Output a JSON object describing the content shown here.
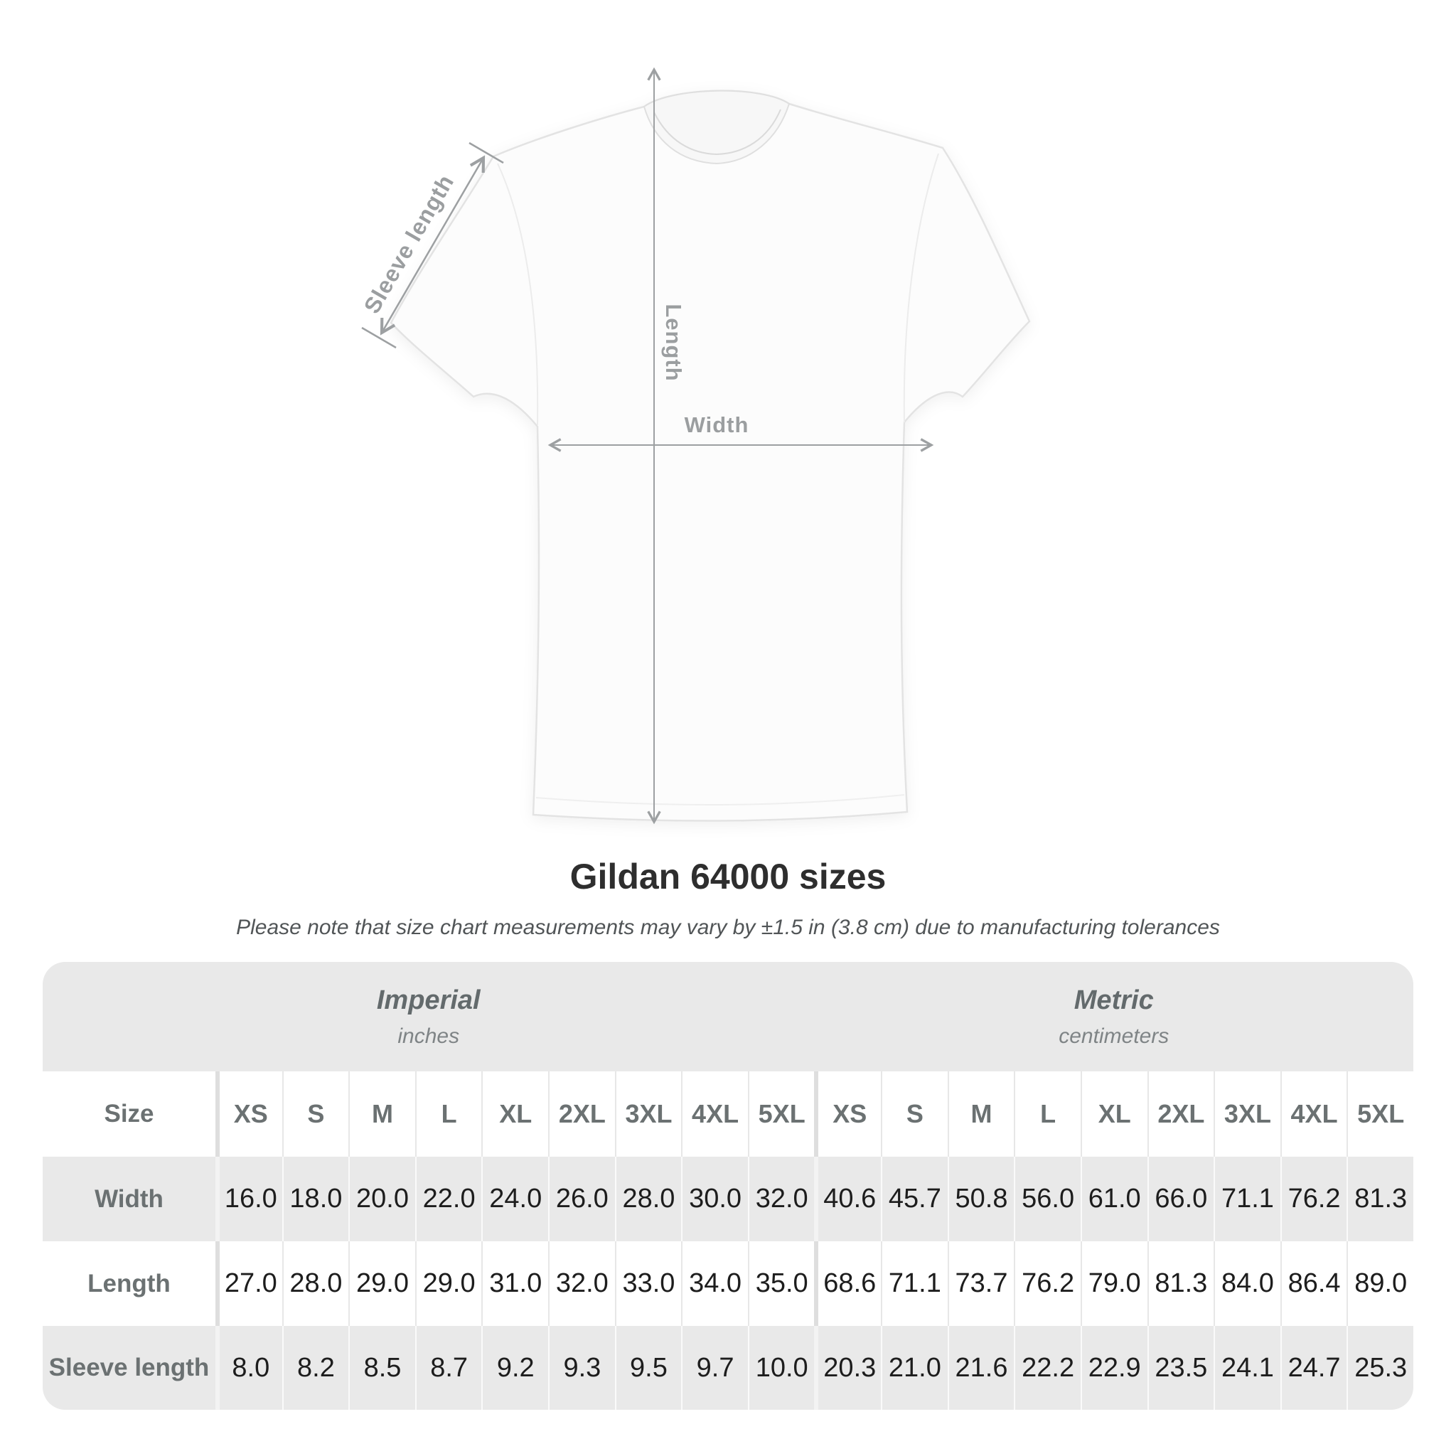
{
  "diagram": {
    "sleeve_label": "Sleeve length",
    "length_label": "Length",
    "width_label": "Width"
  },
  "heading": {
    "title": "Gildan 64000 sizes",
    "subtitle": "Please note that size chart measurements may vary by ±1.5 in (3.8 cm) due to manufacturing tolerances"
  },
  "table": {
    "unit_groups": [
      {
        "name": "Imperial",
        "unit": "inches"
      },
      {
        "name": "Metric",
        "unit": "centimeters"
      }
    ],
    "size_row": {
      "label": "Size",
      "sizes": [
        "XS",
        "S",
        "M",
        "L",
        "XL",
        "2XL",
        "3XL",
        "4XL",
        "5XL",
        "XS",
        "S",
        "M",
        "L",
        "XL",
        "2XL",
        "3XL",
        "4XL",
        "5XL"
      ]
    },
    "measurement_rows": [
      {
        "label": "Width",
        "values": [
          "16.0",
          "18.0",
          "20.0",
          "22.0",
          "24.0",
          "26.0",
          "28.0",
          "30.0",
          "32.0",
          "40.6",
          "45.7",
          "50.8",
          "56.0",
          "61.0",
          "66.0",
          "71.1",
          "76.2",
          "81.3"
        ]
      },
      {
        "label": "Length",
        "values": [
          "27.0",
          "28.0",
          "29.0",
          "29.0",
          "31.0",
          "32.0",
          "33.0",
          "34.0",
          "35.0",
          "68.6",
          "71.1",
          "73.7",
          "76.2",
          "79.0",
          "81.3",
          "84.0",
          "86.4",
          "89.0"
        ]
      },
      {
        "label": "Sleeve length",
        "values": [
          "8.0",
          "8.2",
          "8.5",
          "8.7",
          "9.2",
          "9.3",
          "9.5",
          "9.7",
          "10.0",
          "20.3",
          "21.0",
          "21.6",
          "22.2",
          "22.9",
          "23.5",
          "24.1",
          "24.7",
          "25.3"
        ]
      }
    ]
  },
  "chart_data": {
    "type": "table",
    "title": "Gildan 64000 sizes",
    "note": "Please note that size chart measurements may vary by ±1.5 in (3.8 cm) due to manufacturing tolerances",
    "sizes": [
      "XS",
      "S",
      "M",
      "L",
      "XL",
      "2XL",
      "3XL",
      "4XL",
      "5XL"
    ],
    "imperial_unit": "inches",
    "metric_unit": "centimeters",
    "rows": [
      {
        "measurement": "Width",
        "imperial": [
          16.0,
          18.0,
          20.0,
          22.0,
          24.0,
          26.0,
          28.0,
          30.0,
          32.0
        ],
        "metric": [
          40.6,
          45.7,
          50.8,
          56.0,
          61.0,
          66.0,
          71.1,
          76.2,
          81.3
        ]
      },
      {
        "measurement": "Length",
        "imperial": [
          27.0,
          28.0,
          29.0,
          29.0,
          31.0,
          32.0,
          33.0,
          34.0,
          35.0
        ],
        "metric": [
          68.6,
          71.1,
          73.7,
          76.2,
          79.0,
          81.3,
          84.0,
          86.4,
          89.0
        ]
      },
      {
        "measurement": "Sleeve length",
        "imperial": [
          8.0,
          8.2,
          8.5,
          8.7,
          9.2,
          9.3,
          9.5,
          9.7,
          10.0
        ],
        "metric": [
          20.3,
          21.0,
          21.6,
          22.2,
          22.9,
          23.5,
          24.1,
          24.7,
          25.3
        ]
      }
    ]
  },
  "colors": {
    "annotation_gray": "#9b9ea0",
    "table_band_gray": "#e9e9e9",
    "label_text": "#6b7172",
    "value_text": "#1d1d1d",
    "title_text": "#2e2e2e"
  }
}
